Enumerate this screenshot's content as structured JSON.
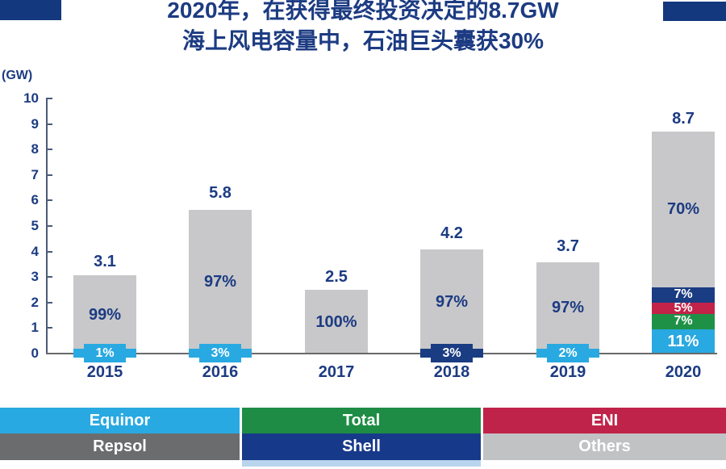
{
  "title": {
    "line1": "2020年，在获得最终投资决定的8.7GW",
    "line2": "海上风电容量中，石油巨头囊获30%"
  },
  "chart_data": {
    "type": "bar",
    "stacked": true,
    "title": "2020年，在获得最终投资决定的8.7GW海上风电容量中，石油巨头囊获30%",
    "unit_label": "(GW)",
    "ylim": [
      0,
      10
    ],
    "yticks": [
      0,
      1,
      2,
      3,
      4,
      5,
      6,
      7,
      8,
      9,
      10
    ],
    "categories": [
      "2015",
      "2016",
      "2017",
      "2018",
      "2019",
      "2020"
    ],
    "bars": [
      {
        "year": "2015",
        "total": 3.1,
        "total_label": "3.1",
        "segments": [
          {
            "company": "Equinor",
            "pct": 1,
            "label": "1%",
            "display": "chip"
          },
          {
            "company": "Others",
            "pct": 99,
            "label": "99%",
            "display": "block"
          }
        ]
      },
      {
        "year": "2016",
        "total": 5.8,
        "total_label": "5.8",
        "segments": [
          {
            "company": "Equinor",
            "pct": 3,
            "label": "3%",
            "display": "chip"
          },
          {
            "company": "Others",
            "pct": 97,
            "label": "97%",
            "display": "block"
          }
        ]
      },
      {
        "year": "2017",
        "total": 2.5,
        "total_label": "2.5",
        "segments": [
          {
            "company": "Others",
            "pct": 100,
            "label": "100%",
            "display": "block"
          }
        ]
      },
      {
        "year": "2018",
        "total": 4.2,
        "total_label": "4.2",
        "segments": [
          {
            "company": "Shell",
            "pct": 3,
            "label": "3%",
            "display": "chip"
          },
          {
            "company": "Others",
            "pct": 97,
            "label": "97%",
            "display": "block"
          }
        ]
      },
      {
        "year": "2019",
        "total": 3.7,
        "total_label": "3.7",
        "segments": [
          {
            "company": "Equinor",
            "pct": 2,
            "label": "2%",
            "display": "chip"
          },
          {
            "company": "Others",
            "pct": 97,
            "label": "97%",
            "display": "block"
          }
        ]
      },
      {
        "year": "2020",
        "total": 8.7,
        "total_label": "8.7",
        "segments": [
          {
            "company": "Equinor",
            "pct": 11,
            "label": "11%",
            "display": "block"
          },
          {
            "company": "Total",
            "pct": 7,
            "label": "7%",
            "display": "block"
          },
          {
            "company": "ENI",
            "pct": 5,
            "label": "5%",
            "display": "block"
          },
          {
            "company": "Shell",
            "pct": 7,
            "label": "7%",
            "display": "block"
          },
          {
            "company": "Others",
            "pct": 70,
            "label": "70%",
            "display": "block"
          }
        ]
      }
    ],
    "legend": {
      "position": "bottom",
      "rows": [
        [
          "Equinor",
          "Total",
          "ENI"
        ],
        [
          "Repsol",
          "Shell",
          "Others"
        ]
      ]
    }
  },
  "colors": {
    "text_navy": "#1C3B82",
    "accent_bar": "#13387E",
    "axis": "#4A5B77",
    "baseline": "#68696B",
    "bottom_strip": "#B9D5EE",
    "series": {
      "Equinor": "#29A9E1",
      "Total": "#1F9147",
      "ENI": "#C32349",
      "Shell": "#1A3C82",
      "Others": "#C8C8CA"
    },
    "legend_colors": {
      "Equinor": "#29A9E1",
      "Total": "#1E8C45",
      "ENI": "#C02349",
      "Repsol": "#6B6C6E",
      "Shell": "#17398A",
      "Others": "#C1C2C4"
    }
  }
}
